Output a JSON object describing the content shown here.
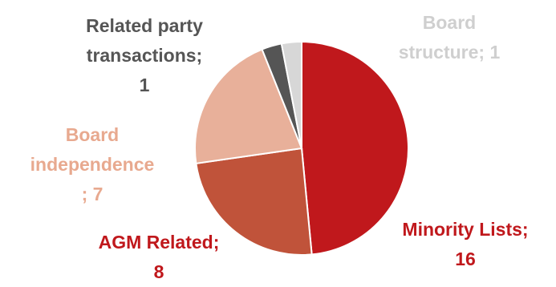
{
  "chart_data": {
    "type": "pie",
    "title": "",
    "slices": [
      {
        "label": "Minority Lists; 16",
        "name": "Minority Lists",
        "value": 16,
        "color": "#c0181c",
        "label_color": "#c0181c"
      },
      {
        "label": "AGM Related; 8",
        "name": "AGM Related",
        "value": 8,
        "color": "#c0533a",
        "label_color": "#c0181c"
      },
      {
        "label": "Board independence; 7",
        "name": "Board independence",
        "value": 7,
        "color": "#e8b09a",
        "label_color": "#e8a98f"
      },
      {
        "label": "Related party transactions; 1",
        "name": "Related party transactions",
        "value": 1,
        "color": "#555555",
        "label_color": "#555555"
      },
      {
        "label": "Board structure; 1",
        "name": "Board structure",
        "value": 1,
        "color": "#d7d7d7",
        "label_color": "#cfcfcf"
      }
    ],
    "start_angle_deg": 0,
    "direction": "clockwise",
    "legend": "none"
  },
  "labels": {
    "minority": "Minority Lists;\n16",
    "agm": "AGM Related;\n8",
    "independence": "Board\nindependence\n; 7",
    "related": "Related party\ntransactions;\n1",
    "structure": "Board\nstructure; 1"
  }
}
